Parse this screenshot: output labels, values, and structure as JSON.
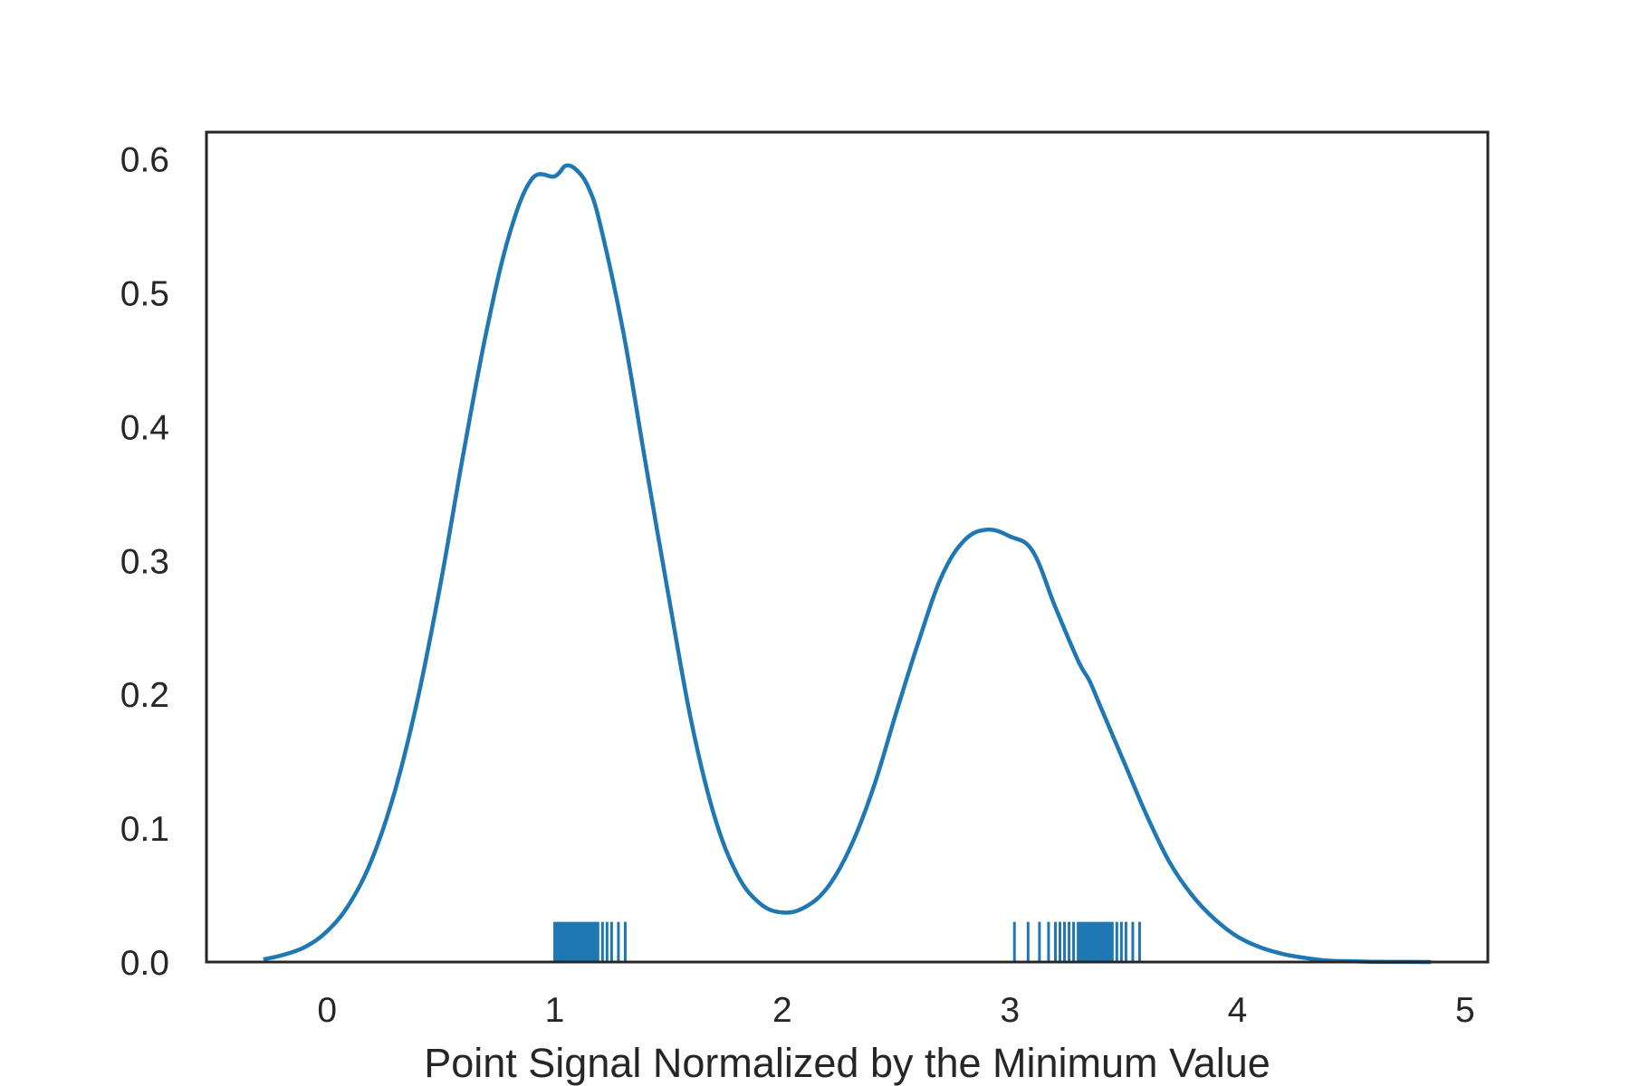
{
  "chart_data": {
    "type": "line",
    "subtype": "kde-with-rug",
    "title": "",
    "xlabel": "Point Signal Normalized by the Minimum Value",
    "ylabel": "",
    "xlim": [
      -0.53,
      5.1
    ],
    "ylim": [
      0,
      0.62
    ],
    "xticks": [
      0,
      1,
      2,
      3,
      4,
      5
    ],
    "xtick_labels": [
      "0",
      "1",
      "2",
      "3",
      "4",
      "5"
    ],
    "yticks": [
      0.0,
      0.1,
      0.2,
      0.3,
      0.4,
      0.5,
      0.6
    ],
    "ytick_labels": [
      "0.0",
      "0.1",
      "0.2",
      "0.3",
      "0.4",
      "0.5",
      "0.6"
    ],
    "grid": false,
    "legend": "none",
    "colors": {
      "series": "#1f77b4",
      "frame": "#262626",
      "text": "#262626"
    },
    "series": [
      {
        "x": [
          -0.28,
          -0.2,
          -0.1,
          0.0,
          0.1,
          0.2,
          0.3,
          0.4,
          0.5,
          0.6,
          0.7,
          0.8,
          0.9,
          1.0,
          1.05,
          1.1,
          1.15,
          1.2,
          1.3,
          1.4,
          1.5,
          1.6,
          1.7,
          1.8,
          1.9,
          2.0,
          2.1,
          2.2,
          2.3,
          2.4,
          2.5,
          2.6,
          2.7,
          2.8,
          2.9,
          3.0,
          3.1,
          3.2,
          3.3,
          3.35,
          3.4,
          3.5,
          3.6,
          3.7,
          3.8,
          3.9,
          4.0,
          4.1,
          4.2,
          4.3,
          4.4,
          4.5,
          4.6,
          4.7,
          4.85
        ],
        "values": [
          0.002,
          0.005,
          0.011,
          0.023,
          0.044,
          0.078,
          0.129,
          0.198,
          0.284,
          0.381,
          0.471,
          0.543,
          0.585,
          0.587,
          0.595,
          0.591,
          0.578,
          0.551,
          0.472,
          0.372,
          0.274,
          0.18,
          0.11,
          0.066,
          0.044,
          0.037,
          0.041,
          0.056,
          0.086,
          0.13,
          0.186,
          0.24,
          0.288,
          0.315,
          0.323,
          0.318,
          0.307,
          0.265,
          0.225,
          0.21,
          0.19,
          0.15,
          0.11,
          0.075,
          0.05,
          0.032,
          0.019,
          0.011,
          0.006,
          0.003,
          0.001,
          0.0006,
          0.0002,
          0.0001,
          0.0
        ]
      }
    ],
    "rug": {
      "height": 0.03,
      "values": [
        1.0,
        1.01,
        1.02,
        1.03,
        1.04,
        1.05,
        1.06,
        1.07,
        1.08,
        1.09,
        1.1,
        1.11,
        1.12,
        1.13,
        1.14,
        1.15,
        1.16,
        1.17,
        1.18,
        1.19,
        1.21,
        1.23,
        1.25,
        1.28,
        1.31,
        3.02,
        3.08,
        3.13,
        3.17,
        3.2,
        3.22,
        3.24,
        3.26,
        3.28,
        3.3,
        3.31,
        3.32,
        3.33,
        3.34,
        3.35,
        3.36,
        3.37,
        3.38,
        3.39,
        3.4,
        3.41,
        3.42,
        3.43,
        3.44,
        3.45,
        3.47,
        3.49,
        3.51,
        3.54,
        3.57
      ]
    }
  }
}
